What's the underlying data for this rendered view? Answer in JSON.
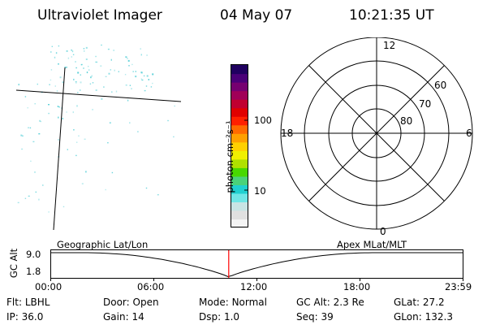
{
  "header": {
    "instrument": "Ultraviolet Imager",
    "date": "04 May 07",
    "time": "10:21:35 UT"
  },
  "colorbar": {
    "unit_label": "photon cm⁻²s⁻¹",
    "ticks": [
      {
        "value": 100,
        "label": "100"
      },
      {
        "value": 10,
        "label": "10"
      }
    ],
    "colors": [
      "#f4f4f4",
      "#e0e0e0",
      "#c8e4e4",
      "#70e6e6",
      "#20d0d0",
      "#4ad27a",
      "#48d800",
      "#b0e000",
      "#f0f000",
      "#ffd000",
      "#ffa000",
      "#ff6a00",
      "#ff2000",
      "#e00000",
      "#c00030",
      "#a00058",
      "#760070",
      "#4a0078",
      "#200060"
    ]
  },
  "polar_plot": {
    "mlt_labels": {
      "top": "12",
      "left": "18",
      "right": "6",
      "bottom": "0"
    },
    "lat_labels": [
      "60",
      "70",
      "80"
    ]
  },
  "timeline": {
    "y_axis_label": "GC Alt",
    "y_ticks": [
      "9.0",
      "1.8"
    ],
    "left_title": "Geographic Lat/Lon",
    "right_title": "Apex  MLat/MLT",
    "x_ticks": [
      "00:00",
      "06:00",
      "12:00",
      "18:00",
      "23:59"
    ],
    "current_time_hours": 10.36
  },
  "info": {
    "row1": [
      {
        "key": "Flt:",
        "value": "LBHL"
      },
      {
        "key": "Door:",
        "value": "Open"
      },
      {
        "key": "Mode:",
        "value": "Normal"
      },
      {
        "key": "GC Alt:",
        "value": "2.3 Re"
      },
      {
        "key": "GLat:",
        "value": "27.2"
      }
    ],
    "row2": [
      {
        "key": "IP:",
        "value": "36.0"
      },
      {
        "key": "Gain:",
        "value": "14"
      },
      {
        "key": "Dsp:",
        "value": "1.0"
      },
      {
        "key": "Seq:",
        "value": "39"
      },
      {
        "key": "GLon:",
        "value": "132.3"
      }
    ]
  },
  "colors": {
    "dots": "#5ad0d8",
    "marker": "#ff0000"
  }
}
